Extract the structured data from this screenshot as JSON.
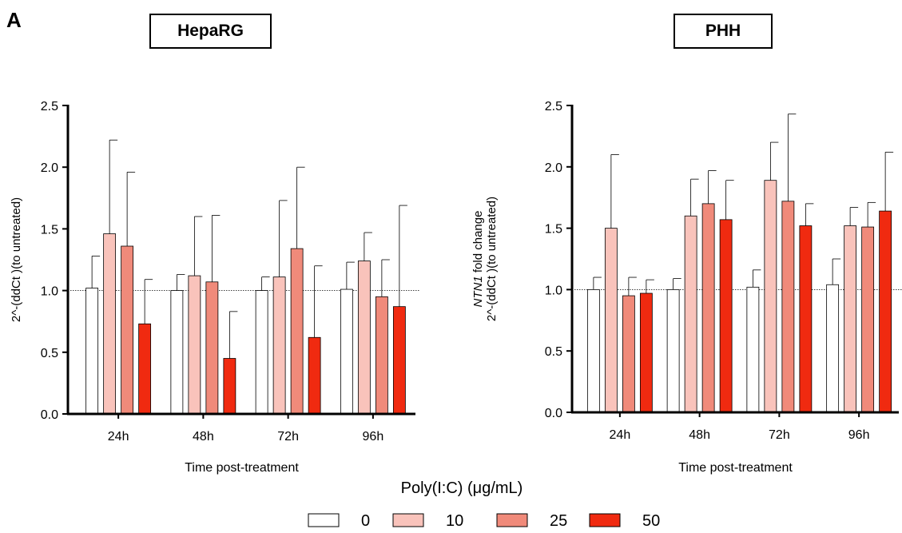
{
  "figure": {
    "panel_letter": "A"
  },
  "legend": {
    "title": "Poly(I:C) (μg/mL)",
    "items": [
      {
        "label": "0",
        "color": "#ffffff"
      },
      {
        "label": "10",
        "color": "#f9c3bb"
      },
      {
        "label": "25",
        "color": "#f08a7a"
      },
      {
        "label": "50",
        "color": "#f02a10"
      }
    ]
  },
  "chart_data": [
    {
      "type": "bar",
      "title": "HepaRG",
      "xlabel": "Time post-treatment",
      "ylabel_italic": "",
      "ylabel_rest": "",
      "ylabel_line2": "2^-(ddCt )(to untreated)",
      "categories": [
        "24h",
        "48h",
        "72h",
        "96h"
      ],
      "ylim": [
        0,
        2.5
      ],
      "yticks": [
        "0.0",
        "0.5",
        "1.0",
        "1.5",
        "2.0",
        "2.5"
      ],
      "reference_line": 1.0,
      "series": [
        {
          "name": "0",
          "values": [
            1.02,
            1.0,
            1.0,
            1.01
          ],
          "errors": [
            0.26,
            0.13,
            0.11,
            0.22
          ]
        },
        {
          "name": "10",
          "values": [
            1.46,
            1.12,
            1.11,
            1.24
          ],
          "errors": [
            0.76,
            0.48,
            0.62,
            0.23
          ]
        },
        {
          "name": "25",
          "values": [
            1.36,
            1.07,
            1.34,
            0.95
          ],
          "errors": [
            0.6,
            0.54,
            0.66,
            0.3
          ]
        },
        {
          "name": "50",
          "values": [
            0.73,
            0.45,
            0.62,
            0.87
          ],
          "errors": [
            0.36,
            0.38,
            0.58,
            0.82
          ]
        }
      ]
    },
    {
      "type": "bar",
      "title": "PHH",
      "xlabel": "Time post-treatment",
      "ylabel_italic": "NTN1",
      "ylabel_rest": " fold change",
      "ylabel_line2": "2^-(ddCt )(to untreated)",
      "categories": [
        "24h",
        "48h",
        "72h",
        "96h"
      ],
      "ylim": [
        0,
        2.5
      ],
      "yticks": [
        "0.0",
        "0.5",
        "1.0",
        "1.5",
        "2.0",
        "2.5"
      ],
      "reference_line": 1.0,
      "series": [
        {
          "name": "0",
          "values": [
            1.0,
            1.0,
            1.02,
            1.04
          ],
          "errors": [
            0.1,
            0.09,
            0.14,
            0.21
          ]
        },
        {
          "name": "10",
          "values": [
            1.5,
            1.6,
            1.89,
            1.52
          ],
          "errors": [
            0.6,
            0.3,
            0.31,
            0.15
          ]
        },
        {
          "name": "25",
          "values": [
            0.95,
            1.7,
            1.72,
            1.51
          ],
          "errors": [
            0.15,
            0.27,
            0.71,
            0.2
          ]
        },
        {
          "name": "50",
          "values": [
            0.97,
            1.57,
            1.52,
            1.64
          ],
          "errors": [
            0.11,
            0.32,
            0.18,
            0.48
          ]
        }
      ]
    }
  ]
}
